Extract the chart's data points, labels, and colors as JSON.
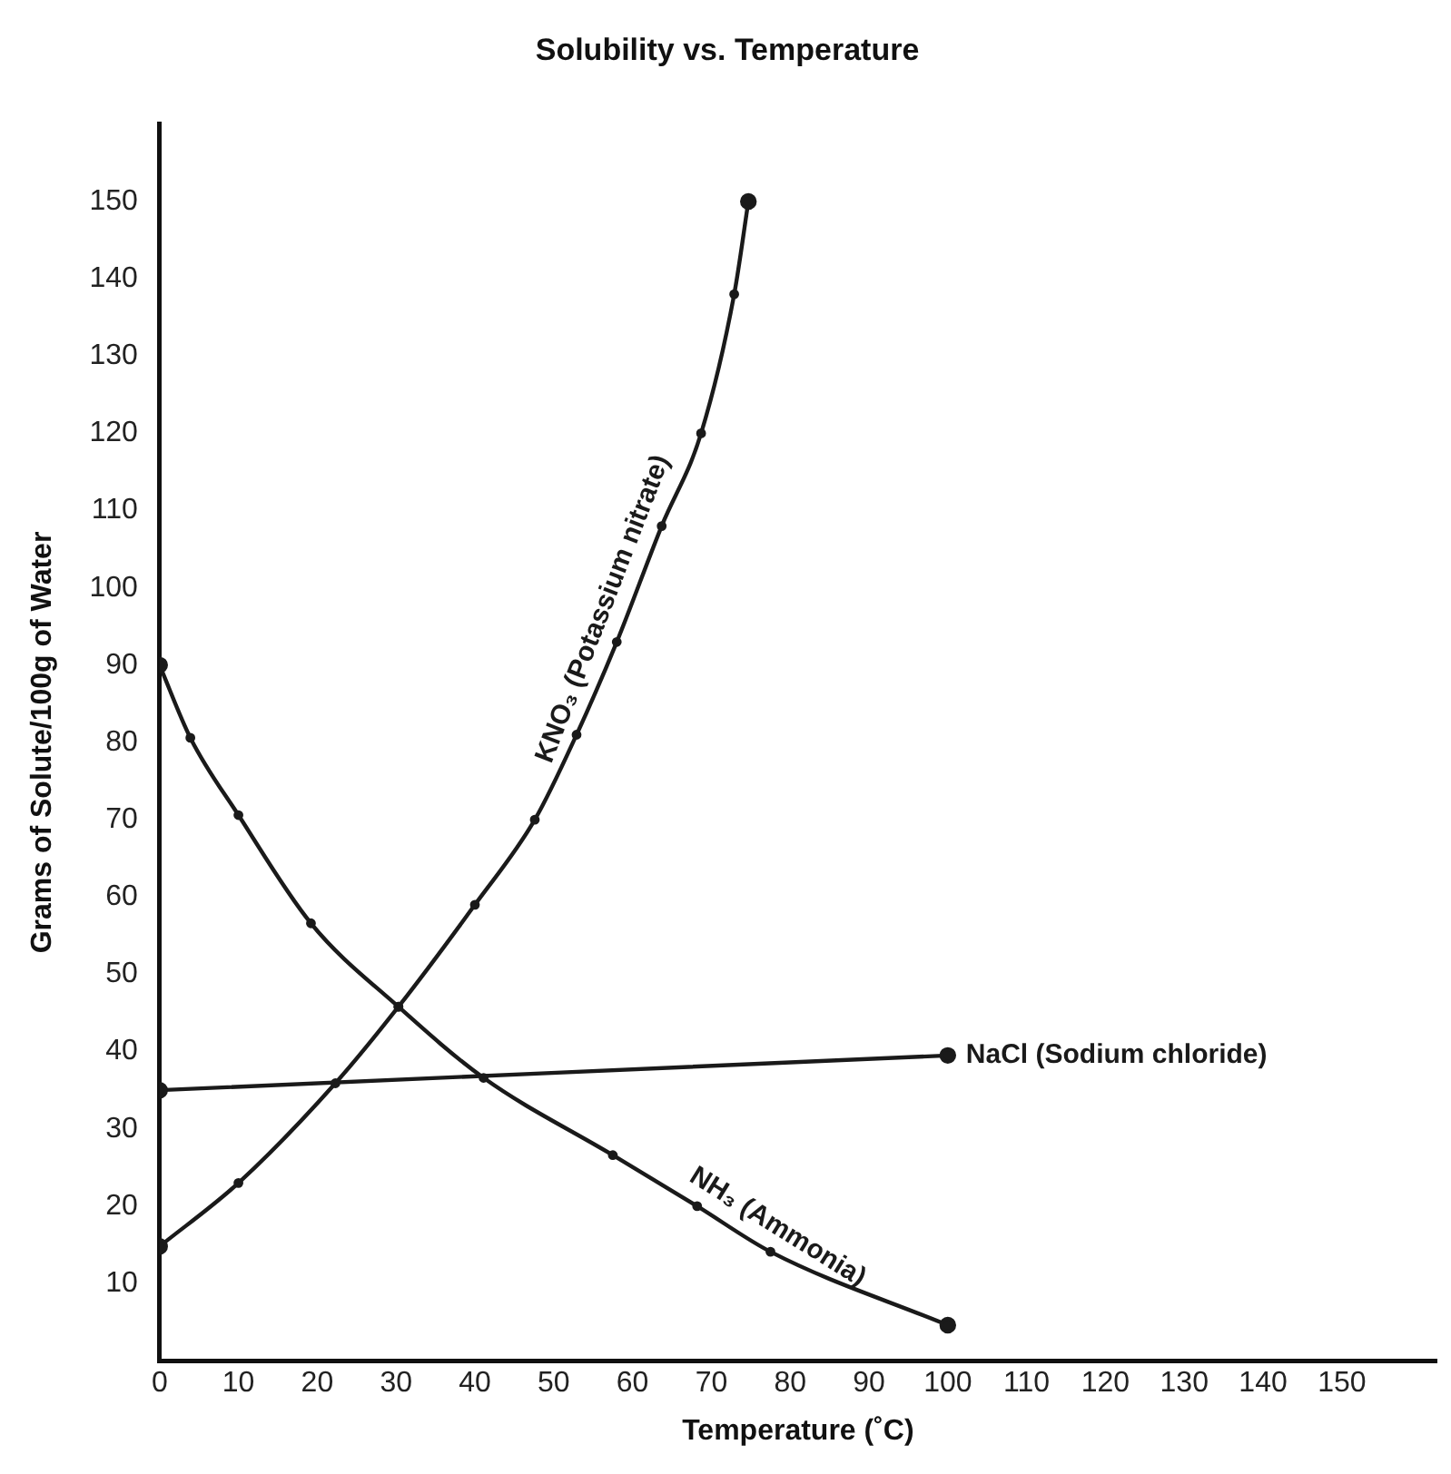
{
  "chart_data": {
    "type": "line",
    "title": "Solubility vs. Temperature",
    "xlabel": "Temperature (˚C)",
    "ylabel": "Grams of Solute/100g of Water",
    "xlim": [
      0,
      162
    ],
    "xticks": [
      0,
      10,
      20,
      30,
      40,
      50,
      60,
      70,
      80,
      90,
      100,
      110,
      120,
      130,
      140,
      150
    ],
    "ylim": [
      0,
      160
    ],
    "yticks": [
      10,
      20,
      30,
      40,
      50,
      60,
      70,
      80,
      90,
      100,
      110,
      120,
      130,
      140,
      150
    ],
    "grid": false,
    "legend": false,
    "marker": "circle",
    "line_style": "solid",
    "series": [
      {
        "name": "KNO₃ (Potassium nitrate)",
        "color": "#1a1a1a",
        "x": [
          0,
          10,
          22.3,
          30.3,
          40,
          47.6,
          52.9,
          58,
          63.7,
          68.7,
          72.9,
          74.7
        ],
        "values": [
          14.8,
          23,
          35.9,
          45.8,
          59,
          70,
          81,
          93,
          108,
          120,
          138,
          150
        ]
      },
      {
        "name": "NaCl (Sodium chloride)",
        "color": "#1a1a1a",
        "x": [
          0,
          100
        ],
        "values": [
          35,
          39.5
        ]
      },
      {
        "name": "NH₃ (Ammonia)",
        "color": "#1a1a1a",
        "x": [
          0,
          3.9,
          10,
          19.2,
          30.3,
          41.1,
          57.5,
          68.2,
          77.5,
          100
        ],
        "values": [
          90,
          80.6,
          70.6,
          56.6,
          45.8,
          36.6,
          26.6,
          20,
          14.1,
          4.6
        ]
      }
    ]
  }
}
